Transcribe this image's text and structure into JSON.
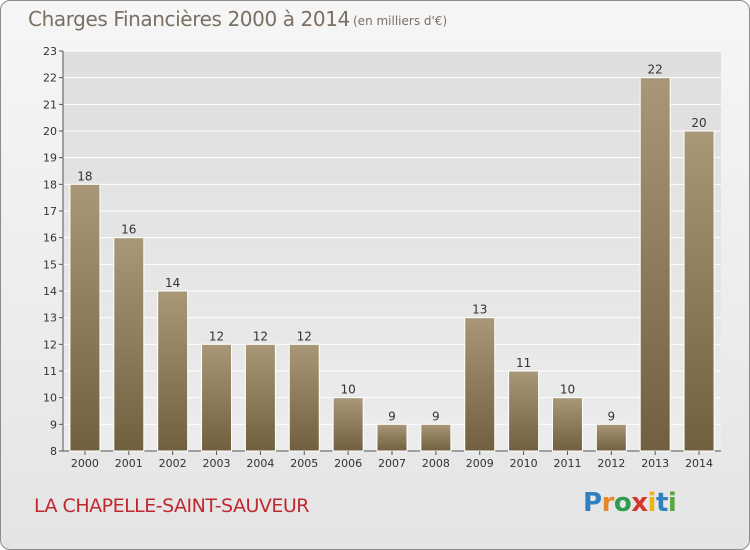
{
  "header": {
    "title": "Charges Financières 2000 à 2014",
    "subtitle": "(en milliers d'€)"
  },
  "footer": {
    "commune": "LA CHAPELLE-SAINT-SAUVEUR",
    "logo": "Proxiti"
  },
  "colors": {
    "bar_top": "#a89878",
    "bar_bottom": "#70603f",
    "title": "#7a6f62",
    "commune": "#c0282f"
  },
  "chart_data": {
    "type": "bar",
    "title": "Charges Financières 2000 à 2014",
    "subtitle": "(en milliers d'€)",
    "categories": [
      "2000",
      "2001",
      "2002",
      "2003",
      "2004",
      "2005",
      "2006",
      "2007",
      "2008",
      "2009",
      "2010",
      "2011",
      "2012",
      "2013",
      "2014"
    ],
    "values": [
      18,
      16,
      14,
      12,
      12,
      12,
      10,
      9,
      9,
      13,
      11,
      10,
      9,
      22,
      20
    ],
    "ylim": [
      8,
      23
    ],
    "yticks": [
      8,
      9,
      10,
      11,
      12,
      13,
      14,
      15,
      16,
      17,
      18,
      19,
      20,
      21,
      22,
      23
    ],
    "grid": true,
    "legend": "none"
  }
}
